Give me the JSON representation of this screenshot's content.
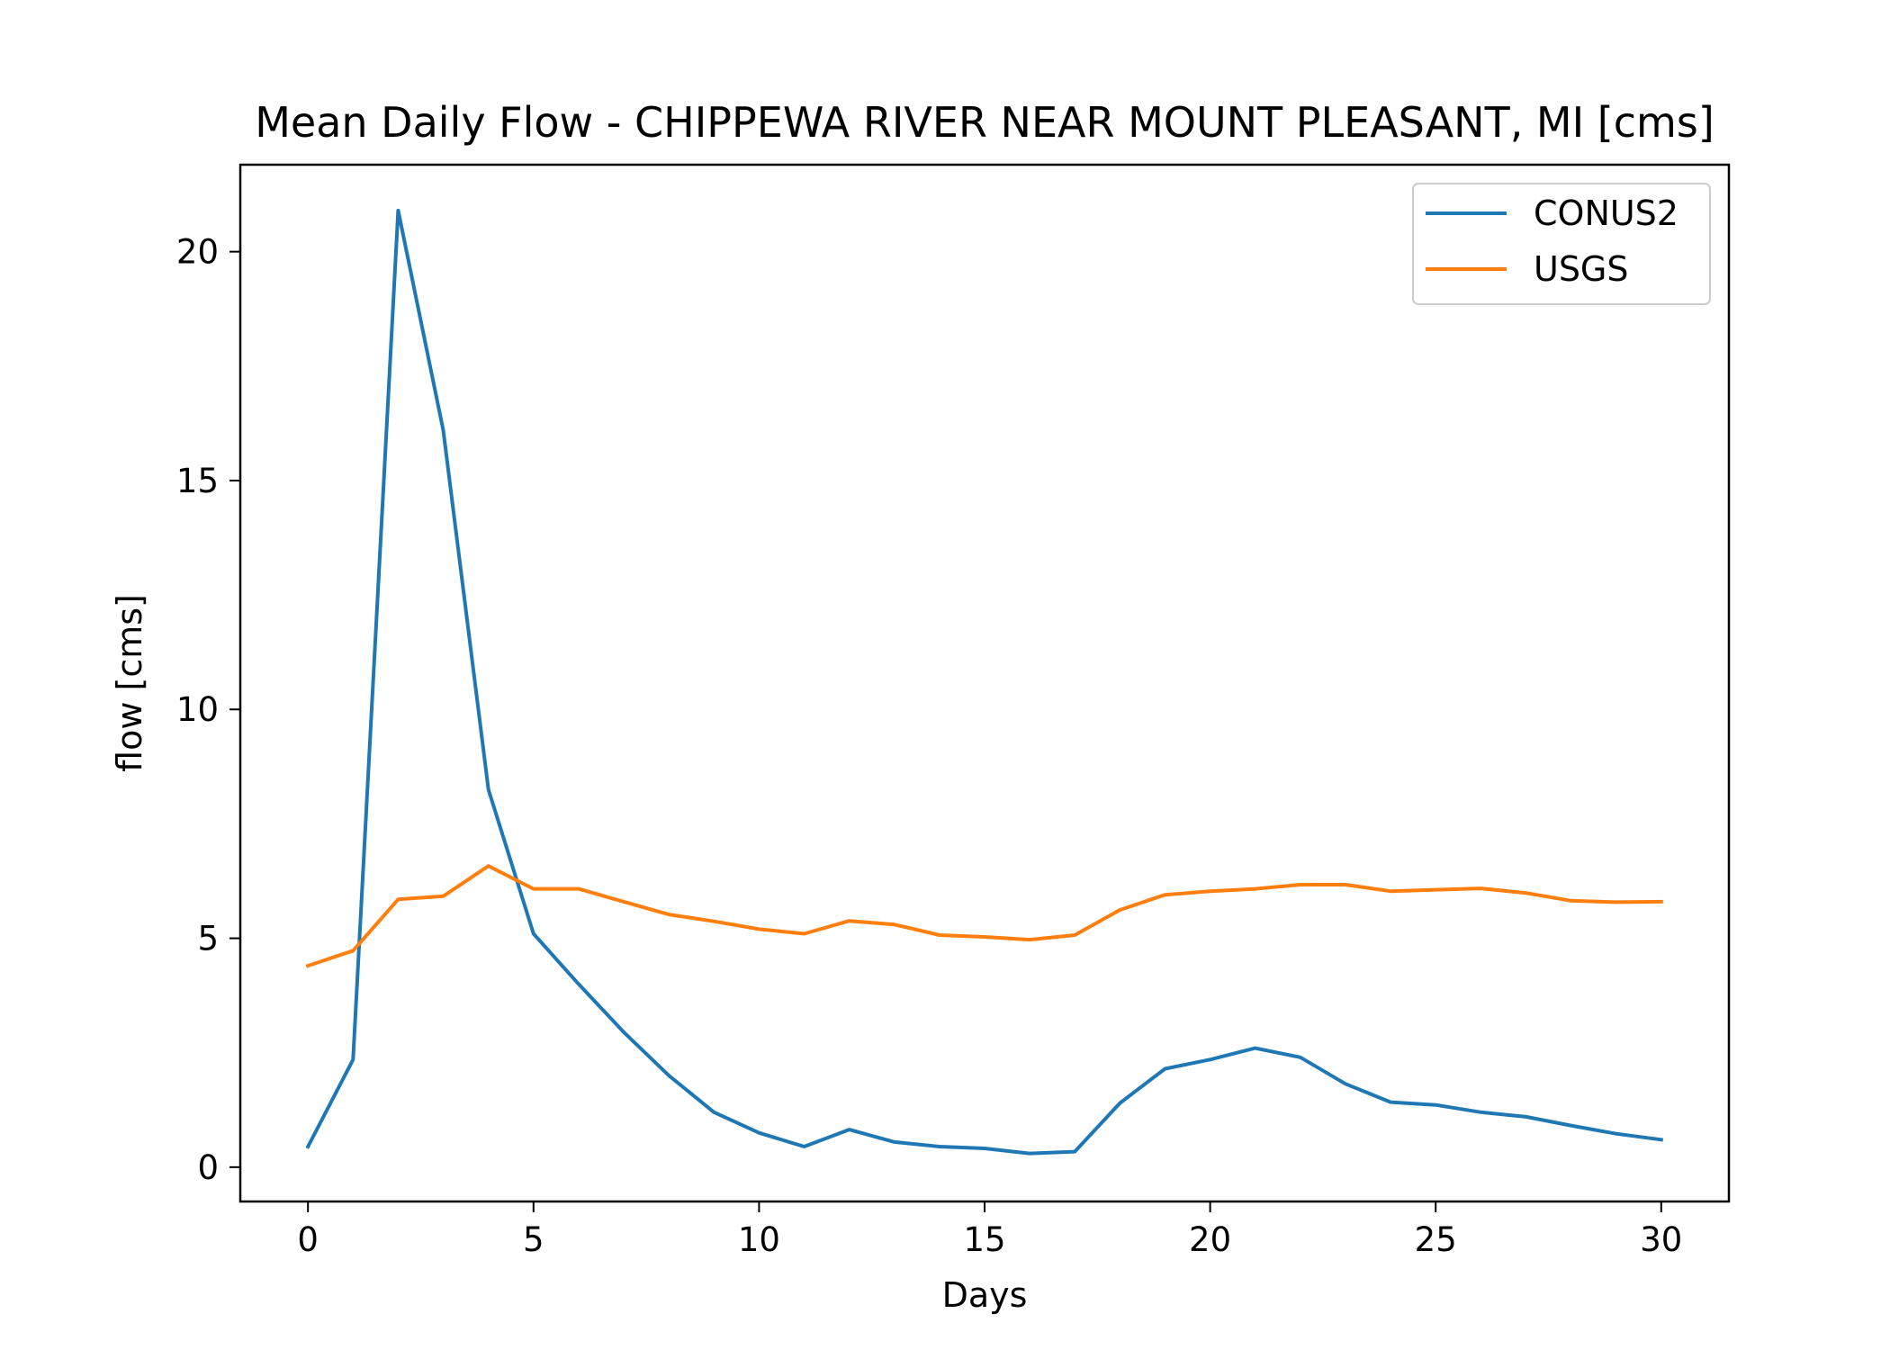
{
  "chart_data": {
    "type": "line",
    "title": "Mean Daily Flow - CHIPPEWA RIVER NEAR MOUNT PLEASANT, MI [cms]",
    "xlabel": "Days",
    "ylabel": "flow [cms]",
    "xlim": [
      -1.5,
      31.5
    ],
    "ylim": [
      -0.75,
      21.9
    ],
    "xticks": [
      0,
      5,
      10,
      15,
      20,
      25,
      30
    ],
    "yticks": [
      0,
      5,
      10,
      15,
      20
    ],
    "grid": false,
    "legend_position": "top-right",
    "x": [
      0,
      1,
      2,
      3,
      4,
      5,
      6,
      7,
      8,
      9,
      10,
      11,
      12,
      13,
      14,
      15,
      16,
      17,
      18,
      19,
      20,
      21,
      22,
      23,
      24,
      25,
      26,
      27,
      28,
      29,
      30
    ],
    "series": [
      {
        "name": "CONUS2",
        "color": "#1f77b4",
        "values": [
          0.45,
          2.35,
          20.9,
          16.1,
          8.25,
          5.1,
          4.0,
          2.95,
          2.0,
          1.2,
          0.75,
          0.45,
          0.82,
          0.55,
          0.45,
          0.41,
          0.3,
          0.34,
          1.4,
          2.15,
          2.35,
          2.6,
          2.4,
          1.82,
          1.42,
          1.36,
          1.2,
          1.1,
          0.91,
          0.73,
          0.6
        ]
      },
      {
        "name": "USGS",
        "color": "#ff7f0e",
        "values": [
          4.4,
          4.73,
          5.85,
          5.92,
          6.58,
          6.08,
          6.08,
          5.8,
          5.52,
          5.37,
          5.2,
          5.1,
          5.38,
          5.3,
          5.07,
          5.03,
          4.97,
          5.07,
          5.62,
          5.95,
          6.03,
          6.08,
          6.17,
          6.17,
          6.03,
          6.06,
          6.09,
          5.99,
          5.82,
          5.79,
          5.8
        ]
      }
    ]
  }
}
